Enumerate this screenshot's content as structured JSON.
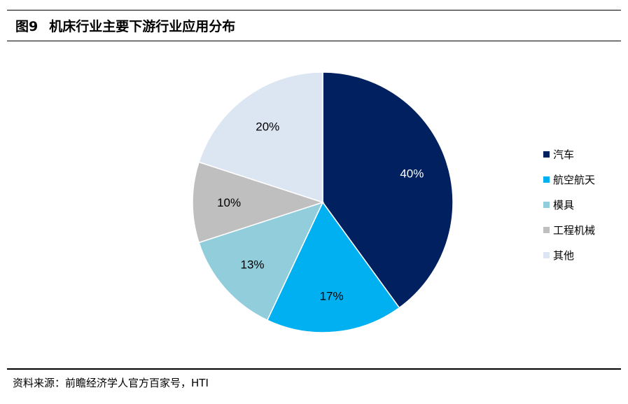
{
  "figure": {
    "number": "图9",
    "title": "机床行业主要下游行业应用分布",
    "source": "资料来源：前瞻经济学人官方百家号，HTI"
  },
  "chart_data": {
    "type": "pie",
    "title": "",
    "legend_position": "right",
    "slices": [
      {
        "label": "汽车",
        "value": 40,
        "display": "40%",
        "color": "#002060",
        "label_color": "#ffffff"
      },
      {
        "label": "航空航天",
        "value": 17,
        "display": "17%",
        "color": "#00b0f0",
        "label_color": "#000000"
      },
      {
        "label": "模具",
        "value": 13,
        "display": "13%",
        "color": "#92cddc",
        "label_color": "#000000"
      },
      {
        "label": "工程机械",
        "value": 10,
        "display": "10%",
        "color": "#bfbfbf",
        "label_color": "#000000"
      },
      {
        "label": "其他",
        "value": 20,
        "display": "20%",
        "color": "#dce6f2",
        "label_color": "#000000"
      }
    ]
  }
}
